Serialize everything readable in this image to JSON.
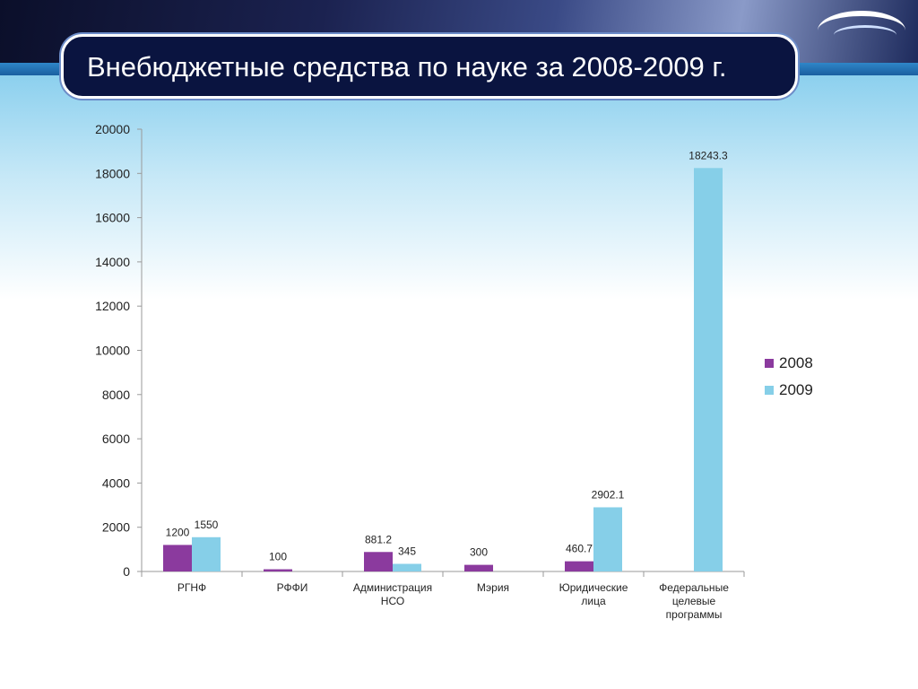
{
  "title": "Внебюджетные средства по науке за 2008-2009 г.",
  "colors": {
    "series_2008": "#8b3a9e",
    "series_2009": "#86cfe8"
  },
  "chart_data": {
    "type": "bar",
    "categories": [
      [
        "РГНФ"
      ],
      [
        "РФФИ"
      ],
      [
        "Администрация",
        "НСО"
      ],
      [
        "Мэрия"
      ],
      [
        "Юридические",
        "лица"
      ],
      [
        "Федеральные",
        "целевые",
        "программы"
      ]
    ],
    "series": [
      {
        "name": "2008",
        "values": [
          1200,
          100,
          881.2,
          300,
          460.7,
          null
        ],
        "labels": [
          "1200",
          "100",
          "881.2",
          "300",
          "460.7",
          ""
        ]
      },
      {
        "name": "2009",
        "values": [
          1550,
          null,
          345,
          null,
          2902.1,
          18243.3
        ],
        "labels": [
          "1550",
          "",
          "345",
          "",
          "2902.1",
          "18243.3"
        ]
      }
    ],
    "yticks": [
      "0",
      "2000",
      "4000",
      "6000",
      "8000",
      "10000",
      "12000",
      "14000",
      "16000",
      "18000",
      "20000"
    ],
    "ylim": [
      0,
      20000
    ],
    "legend_position": "right"
  }
}
